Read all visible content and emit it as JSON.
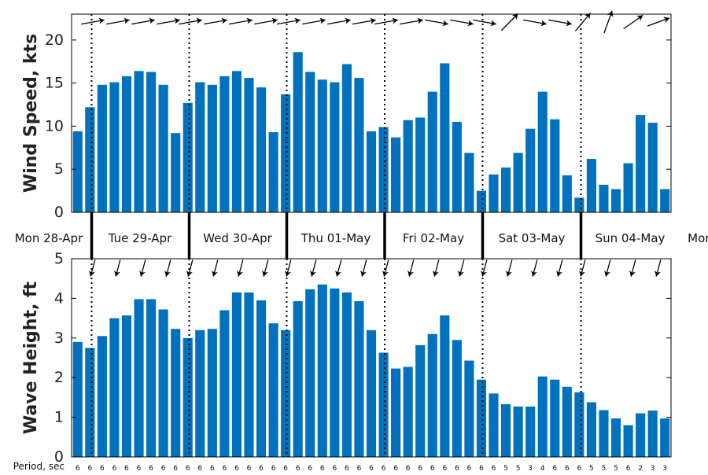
{
  "chart_data": [
    {
      "type": "bar",
      "ylabel": "Wind Speed, kts",
      "ylim": [
        0,
        23
      ],
      "yticks": [
        "0",
        "5",
        "10",
        "15",
        "20"
      ],
      "grid": false,
      "bar_color": "#0072bd",
      "values": [
        9.4,
        12.2,
        14.8,
        15.1,
        15.8,
        16.4,
        16.3,
        14.8,
        9.2,
        12.7,
        15.1,
        14.8,
        15.8,
        16.4,
        15.6,
        14.5,
        9.3,
        13.7,
        18.6,
        16.3,
        15.4,
        15.1,
        17.2,
        15.6,
        9.4,
        9.9,
        8.7,
        10.7,
        11.0,
        14.0,
        17.3,
        10.5,
        6.9,
        2.5,
        4.4,
        5.2,
        6.9,
        9.7,
        14.0,
        10.8,
        4.3,
        1.7,
        6.2,
        3.2,
        2.7,
        5.7,
        11.3,
        10.4,
        2.7
      ],
      "direction_arrows_deg": [
        -100,
        -100,
        -100,
        -100,
        -100,
        -100,
        -100,
        -100,
        -100,
        -100,
        -100,
        -100,
        -100,
        -100,
        -80,
        -80,
        -80,
        -135,
        -80,
        -80,
        -140,
        -160,
        -125,
        -110
      ]
    },
    {
      "type": "bar",
      "ylabel": "Wave Height, ft",
      "ylim": [
        0,
        5
      ],
      "yticks": [
        "0",
        "1",
        "2",
        "3",
        "4",
        "5"
      ],
      "grid": false,
      "bar_color": "#0072bd",
      "values": [
        2.9,
        2.75,
        3.05,
        3.5,
        3.57,
        3.98,
        3.98,
        3.72,
        3.23,
        3.0,
        3.2,
        3.23,
        3.7,
        4.15,
        4.15,
        3.95,
        3.37,
        3.2,
        3.93,
        4.23,
        4.35,
        4.25,
        4.15,
        3.93,
        3.2,
        2.63,
        2.23,
        2.27,
        2.82,
        3.1,
        3.57,
        2.95,
        2.43,
        1.95,
        1.6,
        1.33,
        1.27,
        1.27,
        2.03,
        1.95,
        1.77,
        1.63,
        1.38,
        1.18,
        0.97,
        0.8,
        1.1,
        1.17,
        0.97
      ],
      "direction_arrows_deg": [
        15,
        15,
        15,
        15,
        15,
        15,
        15,
        15,
        15,
        15,
        15,
        15,
        15,
        15,
        15,
        15,
        15,
        15,
        15,
        15,
        15,
        15,
        15,
        15
      ]
    }
  ],
  "days": [
    "Mon 28-Apr",
    "Tue 29-Apr",
    "Wed 30-Apr",
    "Thu 01-May",
    "Fri 02-May",
    "Sat 03-May",
    "Sun 04-May",
    "Mon"
  ],
  "period_label": "Period, sec",
  "periods": [
    "6",
    "6",
    "6",
    "6",
    "6",
    "6",
    "6",
    "6",
    "6",
    "6",
    "6",
    "6",
    "6",
    "6",
    "6",
    "6",
    "6",
    "6",
    "6",
    "6",
    "6",
    "6",
    "6",
    "6",
    "6",
    "6",
    "6",
    "6",
    "6",
    "6",
    "6",
    "6",
    "6",
    "6",
    "6",
    "5",
    "5",
    "3",
    "4",
    "6",
    "6",
    "6",
    "5",
    "5",
    "5",
    "6",
    "2",
    "3",
    "3"
  ]
}
